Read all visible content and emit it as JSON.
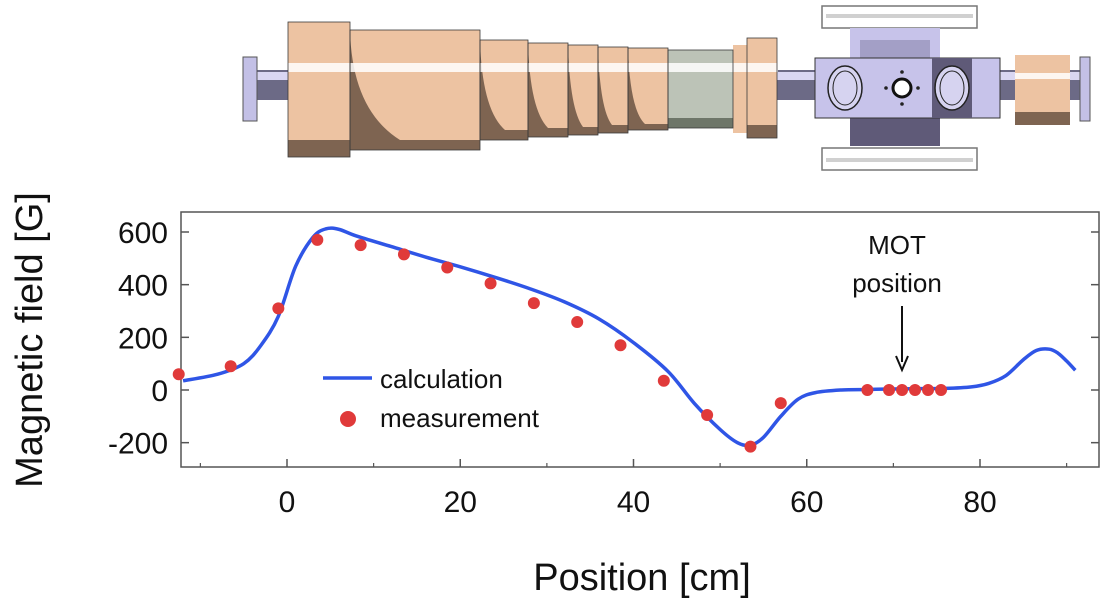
{
  "chart_data": {
    "type": "line",
    "xlabel": "Position [cm]",
    "ylabel": "Magnetic field [G]",
    "xlim": [
      -12,
      92
    ],
    "ylim": [
      -300,
      640
    ],
    "xticks": [
      0,
      20,
      40,
      60,
      80
    ],
    "yticks": [
      -200,
      0,
      200,
      400,
      600
    ],
    "grid": false,
    "legend_position": "center-left",
    "series": [
      {
        "name": "calculation",
        "kind": "line",
        "color": "#2f55e6",
        "x": [
          -12,
          -8,
          -5,
          -3,
          -1,
          1,
          3,
          4.5,
          6,
          8,
          12,
          16,
          20,
          24,
          28,
          32,
          36,
          40,
          44,
          47,
          50,
          52,
          53.5,
          55,
          57,
          59,
          61,
          64,
          67,
          70,
          73,
          76,
          79,
          81,
          83,
          85,
          86.5,
          88,
          89,
          90,
          91
        ],
        "y": [
          35,
          60,
          100,
          170,
          280,
          470,
          580,
          612,
          610,
          585,
          545,
          505,
          468,
          428,
          385,
          335,
          270,
          180,
          70,
          -50,
          -150,
          -200,
          -210,
          -180,
          -100,
          -35,
          -10,
          0,
          2,
          4,
          5,
          6,
          12,
          25,
          55,
          115,
          150,
          155,
          140,
          110,
          75
        ]
      },
      {
        "name": "measurement",
        "kind": "scatter",
        "color": "#e03a3a",
        "x": [
          -12.5,
          -6.5,
          -1,
          3.5,
          8.5,
          13.5,
          18.5,
          23.5,
          28.5,
          33.5,
          38.5,
          43.5,
          48.5,
          53.5,
          57,
          67,
          69.5,
          71,
          72.5,
          74,
          75.5
        ],
        "y": [
          60,
          90,
          310,
          570,
          550,
          515,
          465,
          405,
          330,
          258,
          170,
          35,
          -95,
          -215,
          -50,
          0,
          0,
          0,
          0,
          0,
          0
        ]
      }
    ],
    "annotations": [
      {
        "text_line1": "MOT",
        "text_line2": "position",
        "x": 71.5,
        "y": 0
      }
    ]
  },
  "colors": {
    "copper": "#edc3a2",
    "copper_shade": "#7e6451",
    "gray_coil": "#bcc3b7",
    "gray_coil_shade": "#6e7669",
    "tube": "#6c6a86",
    "flange": "#c3c0e6",
    "chamber": "#c7c3ea",
    "chamber_dark": "#5f5a78"
  }
}
